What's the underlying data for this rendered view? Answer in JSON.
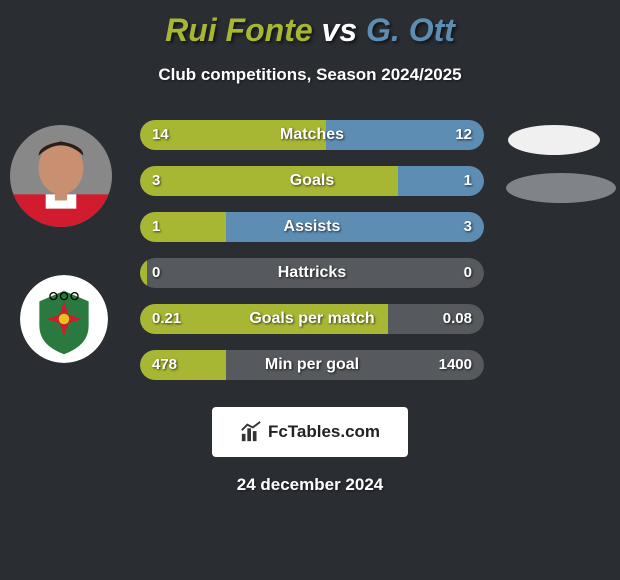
{
  "title": {
    "player1": "Rui Fonte",
    "vs": "vs",
    "player2": "G. Ott",
    "color_player1": "#a8b733",
    "color_vs": "#ffffff",
    "color_player2": "#5d8db3"
  },
  "subtitle": "Club competitions, Season 2024/2025",
  "avatars": {
    "player1": {
      "skin": "#c89070",
      "hair": "#2a1f18",
      "shirt_main": "#d01c2e",
      "shirt_white": "#ffffff",
      "bg": "#888888"
    },
    "club2": {
      "bg": "#ffffff",
      "green": "#2a7a3f",
      "red": "#c8202f",
      "yellow": "#e8c020",
      "rings": "#000000"
    }
  },
  "ovals": {
    "oval1_color": "#f0f0f0",
    "oval2_color": "#808488"
  },
  "bars": {
    "bar_bg": "#56595d",
    "fill_left": "#a8b733",
    "fill_right": "#5d8db3",
    "rows": [
      {
        "label": "Matches",
        "left": "14",
        "right": "12",
        "left_pct": 54,
        "right_pct": 46
      },
      {
        "label": "Goals",
        "left": "3",
        "right": "1",
        "left_pct": 75,
        "right_pct": 25
      },
      {
        "label": "Assists",
        "left": "1",
        "right": "3",
        "left_pct": 25,
        "right_pct": 75
      },
      {
        "label": "Hattricks",
        "left": "0",
        "right": "0",
        "left_pct": 2,
        "right_pct": 0
      },
      {
        "label": "Goals per match",
        "left": "0.21",
        "right": "0.08",
        "left_pct": 72,
        "right_pct": 0
      },
      {
        "label": "Min per goal",
        "left": "478",
        "right": "1400",
        "left_pct": 25,
        "right_pct": 0
      }
    ]
  },
  "footer": {
    "site": "FcTables.com",
    "date": "24 december 2024"
  }
}
